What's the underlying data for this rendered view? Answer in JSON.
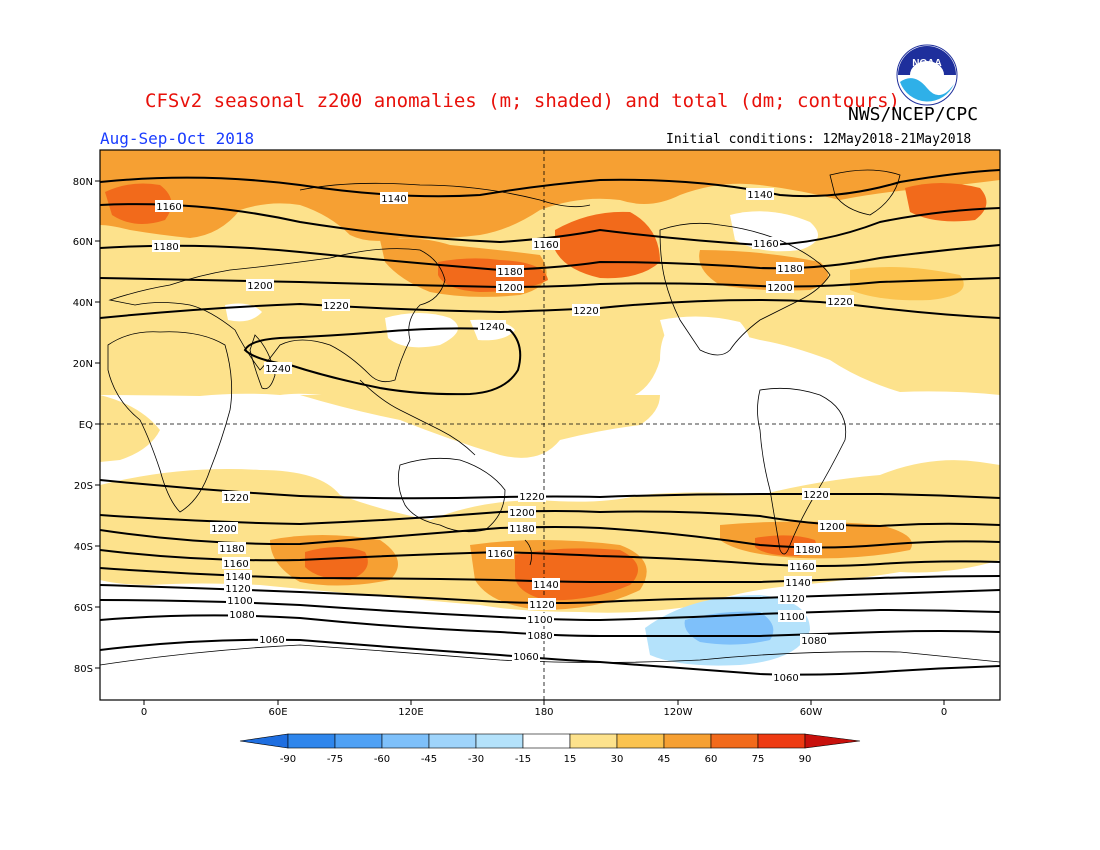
{
  "title": "CFSv2 seasonal z200 anomalies (m; shaded) and total (dm; contours)",
  "agency": "NWS/NCEP/CPC",
  "season": "Aug-Sep-Oct 2018",
  "initial_conditions": "Initial conditions: 12May2018-21May2018",
  "logo_text": "NOAA",
  "lat_labels": [
    "80N",
    "60N",
    "40N",
    "20N",
    "EQ",
    "20S",
    "40S",
    "60S",
    "80S"
  ],
  "lon_labels": [
    "0",
    "60E",
    "120E",
    "180",
    "120W",
    "60W",
    "0"
  ],
  "colorbar": {
    "labels": [
      "-90",
      "-75",
      "-60",
      "-45",
      "-30",
      "-15",
      "15",
      "30",
      "45",
      "60",
      "75",
      "90"
    ],
    "colors": [
      "#1e6ee0",
      "#2f86ec",
      "#4fa1f5",
      "#7ec0fa",
      "#b4e2fb",
      "#ffffff",
      "#fde28c",
      "#fbc34f",
      "#f6a033",
      "#f26a1b",
      "#ee3a12",
      "#c8100c"
    ]
  },
  "contour_labels": {
    "c1060": "1060",
    "c1080": "1080",
    "c1100": "1100",
    "c1120": "1120",
    "c1140": "1140",
    "c1160": "1160",
    "c1180": "1180",
    "c1200": "1200",
    "c1220": "1220",
    "c1240": "1240"
  }
}
